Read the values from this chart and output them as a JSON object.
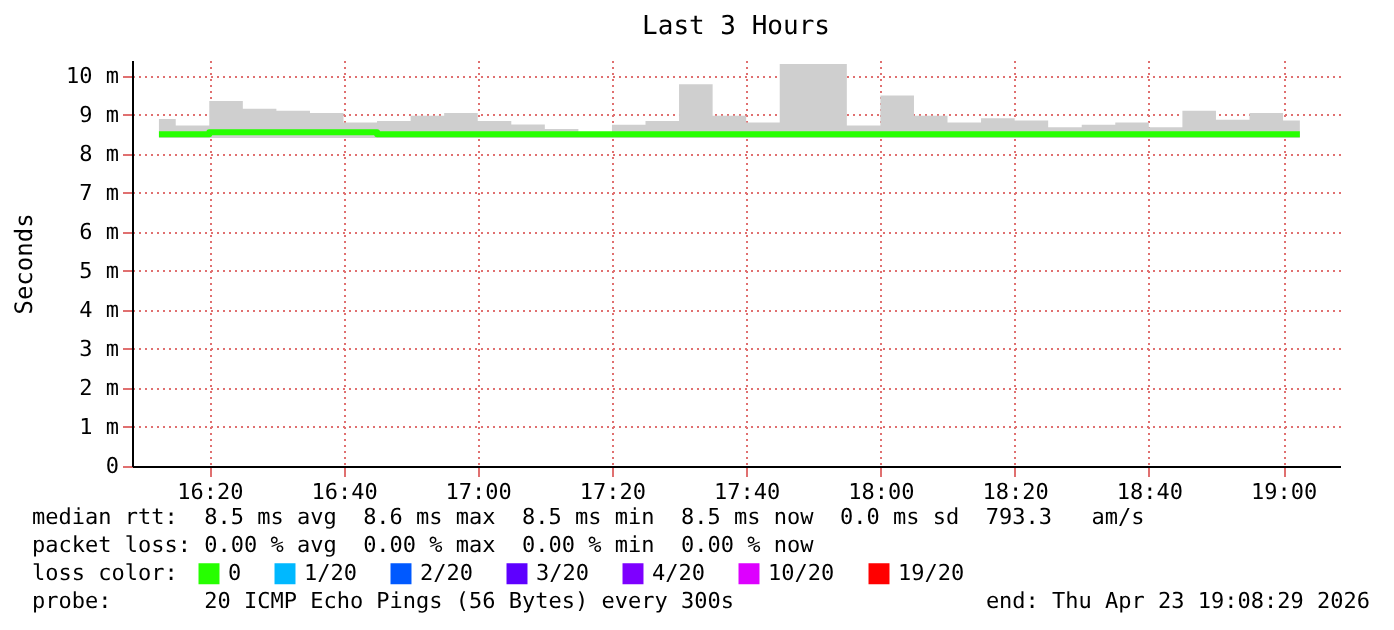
{
  "chart_data": {
    "type": "step",
    "title": "Last 3 Hours",
    "ylabel": "Seconds",
    "legend_title": "loss color:",
    "legend": "bottom",
    "grid": true,
    "xlim": [
      16.1414,
      19.1414
    ],
    "xticks": [
      {
        "value": 16.3333,
        "label": "16:20"
      },
      {
        "value": 16.6667,
        "label": "16:40"
      },
      {
        "value": 17,
        "label": "17:00"
      },
      {
        "value": 17.3333,
        "label": "17:20"
      },
      {
        "value": 17.6667,
        "label": "17:40"
      },
      {
        "value": 18,
        "label": "18:00"
      },
      {
        "value": 18.3333,
        "label": "18:20"
      },
      {
        "value": 18.6667,
        "label": "18:40"
      },
      {
        "value": 19,
        "label": "19:00"
      }
    ],
    "ylim": [
      0,
      10.4
    ],
    "yticks": [
      0,
      {
        "value": 1,
        "label": "1 m"
      },
      {
        "value": 2,
        "label": "2 m"
      },
      {
        "value": 3,
        "label": "3 m"
      },
      {
        "value": 4,
        "label": "4 m"
      },
      {
        "value": 5,
        "label": "5 m"
      },
      {
        "value": 6,
        "label": "6 m"
      },
      {
        "value": 7,
        "label": "7 m"
      },
      {
        "value": 8,
        "label": "8 m"
      },
      {
        "value": 9,
        "label": "9 m"
      },
      {
        "value": 10,
        "label": "10 m"
      }
    ],
    "x": [
      16.2083,
      16.2917,
      16.375,
      16.4583,
      16.5417,
      16.625,
      16.7083,
      16.7917,
      16.875,
      16.9583,
      17.0417,
      17.125,
      17.2083,
      17.2917,
      17.375,
      17.4583,
      17.5417,
      17.625,
      17.7083,
      17.7917,
      17.875,
      17.9583,
      18.0417,
      18.125,
      18.2083,
      18.2917,
      18.375,
      18.4583,
      18.5417,
      18.625,
      18.7083,
      18.7917,
      18.875,
      18.9583,
      19.0417
    ],
    "series": [
      {
        "name": "0",
        "color": "#26ff00",
        "values": [
          8.5,
          8.5,
          8.55,
          8.55,
          8.55,
          8.55,
          8.55,
          8.5,
          8.5,
          8.5,
          8.5,
          8.5,
          8.5,
          8.5,
          8.5,
          8.5,
          8.5,
          8.5,
          8.5,
          8.5,
          8.5,
          8.5,
          8.5,
          8.5,
          8.5,
          8.5,
          8.5,
          8.5,
          8.5,
          8.5,
          8.5,
          8.5,
          8.5,
          8.5,
          8.5
        ],
        "lower": [
          8.4,
          8.4,
          8.4,
          8.4,
          8.4,
          8.4,
          8.4,
          8.4,
          8.4,
          8.4,
          8.4,
          8.4,
          8.4,
          8.4,
          8.4,
          8.4,
          8.4,
          8.4,
          8.4,
          8.4,
          8.4,
          8.4,
          8.4,
          8.4,
          8.4,
          8.4,
          8.4,
          8.4,
          8.4,
          8.4,
          8.4,
          8.4,
          8.4,
          8.4,
          8.4
        ],
        "upper": [
          8.89,
          8.72,
          9.35,
          9.15,
          9.1,
          9.04,
          8.8,
          8.84,
          8.97,
          9.04,
          8.84,
          8.75,
          8.63,
          8.55,
          8.74,
          8.84,
          9.78,
          8.97,
          8.8,
          10.3,
          10.3,
          8.72,
          9.49,
          8.97,
          8.8,
          8.91,
          8.85,
          8.68,
          8.74,
          8.8,
          8.68,
          9.1,
          8.87,
          9.04,
          8.85
        ]
      },
      {
        "name": "1/20",
        "color": "#00b8ff",
        "values": [
          null,
          null,
          null,
          null,
          null,
          null,
          null,
          null,
          null,
          null,
          null,
          null,
          null,
          null,
          null,
          null,
          null,
          null,
          null,
          null,
          null,
          null,
          null,
          null,
          null,
          null,
          null,
          null,
          null,
          null,
          null,
          null,
          null,
          null,
          null
        ]
      },
      {
        "name": "2/20",
        "color": "#0059ff",
        "values": [
          null,
          null,
          null,
          null,
          null,
          null,
          null,
          null,
          null,
          null,
          null,
          null,
          null,
          null,
          null,
          null,
          null,
          null,
          null,
          null,
          null,
          null,
          null,
          null,
          null,
          null,
          null,
          null,
          null,
          null,
          null,
          null,
          null,
          null,
          null
        ]
      },
      {
        "name": "3/20",
        "color": "#5e00ff",
        "values": [
          null,
          null,
          null,
          null,
          null,
          null,
          null,
          null,
          null,
          null,
          null,
          null,
          null,
          null,
          null,
          null,
          null,
          null,
          null,
          null,
          null,
          null,
          null,
          null,
          null,
          null,
          null,
          null,
          null,
          null,
          null,
          null,
          null,
          null,
          null
        ]
      },
      {
        "name": "4/20",
        "color": "#7e00ff",
        "values": [
          null,
          null,
          null,
          null,
          null,
          null,
          null,
          null,
          null,
          null,
          null,
          null,
          null,
          null,
          null,
          null,
          null,
          null,
          null,
          null,
          null,
          null,
          null,
          null,
          null,
          null,
          null,
          null,
          null,
          null,
          null,
          null,
          null,
          null,
          null
        ]
      },
      {
        "name": "10/20",
        "color": "#dd00ff",
        "values": [
          null,
          null,
          null,
          null,
          null,
          null,
          null,
          null,
          null,
          null,
          null,
          null,
          null,
          null,
          null,
          null,
          null,
          null,
          null,
          null,
          null,
          null,
          null,
          null,
          null,
          null,
          null,
          null,
          null,
          null,
          null,
          null,
          null,
          null,
          null
        ]
      },
      {
        "name": "19/20",
        "color": "#ff0000",
        "values": [
          null,
          null,
          null,
          null,
          null,
          null,
          null,
          null,
          null,
          null,
          null,
          null,
          null,
          null,
          null,
          null,
          null,
          null,
          null,
          null,
          null,
          null,
          null,
          null,
          null,
          null,
          null,
          null,
          null,
          null,
          null,
          null,
          null,
          null,
          null
        ]
      }
    ],
    "annotations": [
      "median rtt:  8.5 ms avg  8.6 ms max  8.5 ms min  8.5 ms now  0.0 ms sd  793.3   am/s",
      "packet loss: 0.00 % avg  0.00 % max  0.00 % min  0.00 % now",
      "probe:       20 ICMP Echo Pings (56 Bytes) every 300s",
      "end: Thu Apr 23 19:08:29 2026"
    ]
  }
}
